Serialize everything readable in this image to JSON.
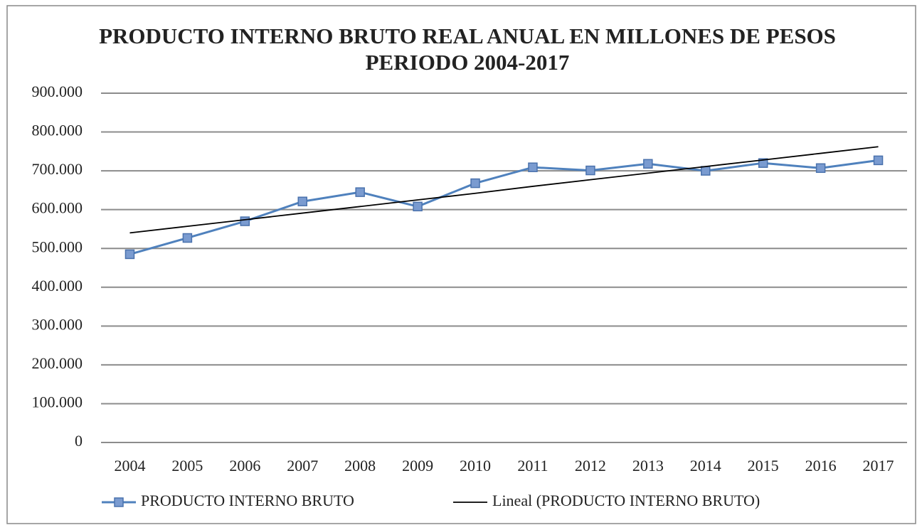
{
  "chart_data": {
    "type": "line",
    "title": "PRODUCTO INTERNO BRUTO REAL ANUAL EN MILLONES DE PESOS PERIODO 2004-2017",
    "categories": [
      "2004",
      "2005",
      "2006",
      "2007",
      "2008",
      "2009",
      "2010",
      "2011",
      "2012",
      "2013",
      "2014",
      "2015",
      "2016",
      "2017"
    ],
    "series": [
      {
        "name": "PRODUCTO INTERNO BRUTO",
        "color": "#4f81bd",
        "marker": "square",
        "values": [
          485000,
          527000,
          570000,
          621000,
          645000,
          608000,
          668000,
          709000,
          701000,
          718000,
          700000,
          720000,
          707000,
          727000
        ]
      },
      {
        "name": "Lineal (PRODUCTO INTERNO BRUTO)",
        "color": "#000000",
        "marker": "none",
        "values": [
          540000,
          557000,
          574000,
          591000,
          608000,
          625000,
          642000,
          660000,
          677000,
          694000,
          711000,
          728000,
          745000,
          762000
        ]
      }
    ],
    "ylim": [
      0,
      900000
    ],
    "yticks": [
      0,
      {
        "value": 100000,
        "label": "100.000"
      },
      {
        "value": 200000,
        "label": "200.000"
      },
      {
        "value": 300000,
        "label": "300.000"
      },
      {
        "value": 400000,
        "label": "400.000"
      },
      {
        "value": 500000,
        "label": "500.000"
      },
      {
        "value": 600000,
        "label": "600.000"
      },
      {
        "value": 700000,
        "label": "700.000"
      },
      {
        "value": 800000,
        "label": "800.000"
      },
      {
        "value": 900000,
        "label": "900.000"
      }
    ],
    "grid": true,
    "legend": "bottom"
  }
}
